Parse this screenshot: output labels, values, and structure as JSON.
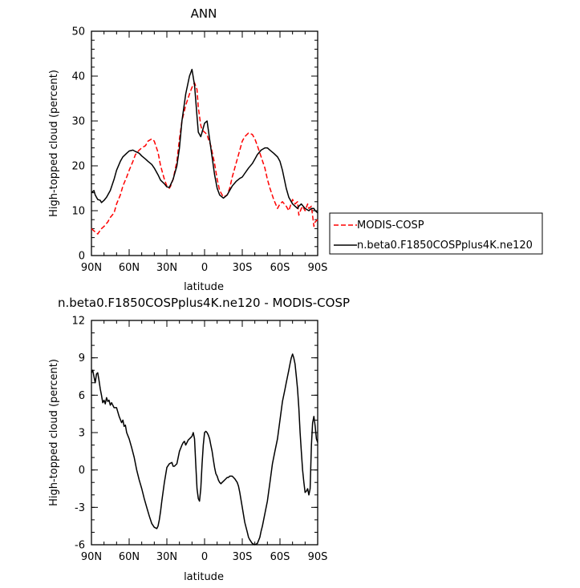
{
  "chart_data": [
    {
      "type": "line",
      "title": "ANN",
      "xlabel": "latitude",
      "ylabel": "High-topped cloud (percent)",
      "x_categories": [
        "90N",
        "60N",
        "30N",
        "0",
        "30S",
        "60S",
        "90S"
      ],
      "x_tick_values": [
        90,
        60,
        30,
        0,
        -30,
        -60,
        -90
      ],
      "xlim": [
        90,
        -90
      ],
      "ylim": [
        0,
        50
      ],
      "y_ticks": [
        0,
        10,
        20,
        30,
        40,
        50
      ],
      "grid": false,
      "legend_placement": "right",
      "series": [
        {
          "name": "MODIS-COSP",
          "color": "#ff0000",
          "dash": "dashed",
          "x": [
            90,
            88,
            85,
            82,
            80,
            77,
            75,
            72,
            70,
            67,
            65,
            62,
            60,
            57,
            55,
            52,
            50,
            47,
            45,
            42,
            40,
            37,
            35,
            32,
            30,
            28,
            27,
            25,
            22,
            20,
            18,
            15,
            12,
            10,
            8,
            6,
            5,
            3,
            2,
            0,
            -2,
            -3,
            -5,
            -8,
            -10,
            -12,
            -15,
            -18,
            -20,
            -22,
            -25,
            -28,
            -30,
            -32,
            -35,
            -38,
            -40,
            -42,
            -45,
            -48,
            -50,
            -52,
            -55,
            -58,
            -60,
            -62,
            -65,
            -67,
            -70,
            -72,
            -74,
            -75,
            -77,
            -78,
            -80,
            -82,
            -83,
            -85,
            -87,
            -88,
            -90
          ],
          "values": [
            6.0,
            5.5,
            4.8,
            6.0,
            6.5,
            7.5,
            8.5,
            9.5,
            11.5,
            13.5,
            15.5,
            17.5,
            19.0,
            21.0,
            22.5,
            23.5,
            24.0,
            24.5,
            25.5,
            26.0,
            25.5,
            23.0,
            20.0,
            17.0,
            15.5,
            15.0,
            15.5,
            17.0,
            21.0,
            26.0,
            30.0,
            33.5,
            36.0,
            37.5,
            38.5,
            37.0,
            33.0,
            29.0,
            28.0,
            27.5,
            27.0,
            26.0,
            24.5,
            20.5,
            17.0,
            14.5,
            13.0,
            13.5,
            15.0,
            17.5,
            20.5,
            23.5,
            25.5,
            26.5,
            27.3,
            27.0,
            26.0,
            24.5,
            22.0,
            19.5,
            17.0,
            15.0,
            12.5,
            10.5,
            11.5,
            12.0,
            11.0,
            10.0,
            12.5,
            11.5,
            12.0,
            9.0,
            10.5,
            11.0,
            10.0,
            11.5,
            10.5,
            11.0,
            6.5,
            7.5,
            8.0
          ]
        },
        {
          "name": "n.beta0.F1850COSPplus4K.ne120",
          "color": "#000000",
          "dash": "solid",
          "x": [
            90,
            88,
            87,
            85,
            83,
            82,
            80,
            78,
            77,
            75,
            72,
            70,
            67,
            65,
            62,
            60,
            57,
            55,
            52,
            50,
            47,
            45,
            42,
            40,
            37,
            35,
            32,
            30,
            28,
            27,
            25,
            22,
            20,
            18,
            15,
            12,
            10,
            8,
            6,
            5,
            3,
            2,
            0,
            -2,
            -3,
            -5,
            -8,
            -10,
            -12,
            -15,
            -18,
            -20,
            -22,
            -25,
            -28,
            -30,
            -32,
            -35,
            -38,
            -40,
            -42,
            -45,
            -48,
            -50,
            -52,
            -55,
            -58,
            -60,
            -62,
            -65,
            -67,
            -70,
            -72,
            -74,
            -75,
            -77,
            -80,
            -83,
            -85,
            -87,
            -88,
            -90
          ],
          "values": [
            14.0,
            14.5,
            13.5,
            12.5,
            12.3,
            11.8,
            12.3,
            13.0,
            13.5,
            14.5,
            17.0,
            19.0,
            21.0,
            22.0,
            22.8,
            23.3,
            23.5,
            23.2,
            22.8,
            22.2,
            21.5,
            21.0,
            20.3,
            19.5,
            18.0,
            16.8,
            16.0,
            15.3,
            15.2,
            15.8,
            17.0,
            20.0,
            24.0,
            30.0,
            36.0,
            40.0,
            41.5,
            38.0,
            31.0,
            27.5,
            26.5,
            27.5,
            29.5,
            30.0,
            28.0,
            24.0,
            18.0,
            15.0,
            13.5,
            12.8,
            13.5,
            14.5,
            15.5,
            16.5,
            17.2,
            17.5,
            18.3,
            19.5,
            20.5,
            21.5,
            22.5,
            23.5,
            24.0,
            24.0,
            23.5,
            22.8,
            22.0,
            21.0,
            19.0,
            15.0,
            13.0,
            11.5,
            11.0,
            10.5,
            11.0,
            11.5,
            10.5,
            10.0,
            10.5,
            10.5,
            10.0,
            9.5
          ]
        }
      ]
    },
    {
      "type": "line",
      "title": "n.beta0.F1850COSPplus4K.ne120 - MODIS-COSP",
      "xlabel": "latitude",
      "ylabel": "High-topped cloud (percent)",
      "x_categories": [
        "90N",
        "60N",
        "30N",
        "0",
        "30S",
        "60S",
        "90S"
      ],
      "x_tick_values": [
        90,
        60,
        30,
        0,
        -30,
        -60,
        -90
      ],
      "xlim": [
        90,
        -90
      ],
      "ylim": [
        -6,
        12
      ],
      "y_ticks": [
        -6,
        -3,
        0,
        3,
        6,
        9,
        12
      ],
      "grid": false,
      "series": [
        {
          "color": "#000000",
          "dash": "solid",
          "x": [
            90,
            89,
            88,
            87,
            86,
            85,
            84,
            83,
            82,
            81,
            80,
            79,
            78,
            77,
            76,
            75,
            74,
            72,
            70,
            68,
            66,
            65,
            64,
            63,
            62,
            60,
            58,
            56,
            54,
            52,
            50,
            48,
            46,
            44,
            42,
            40,
            38,
            37,
            36,
            35,
            34,
            32,
            30,
            28,
            26,
            25,
            24,
            22,
            20,
            18,
            17,
            16,
            15,
            14,
            13,
            12,
            11,
            10,
            9,
            8,
            7,
            6,
            5,
            4,
            3,
            2,
            1,
            0,
            -1,
            -2,
            -3,
            -4,
            -5,
            -6,
            -7,
            -8,
            -9,
            -10,
            -11,
            -12,
            -13,
            -14,
            -15,
            -16,
            -17,
            -18,
            -19,
            -20,
            -22,
            -24,
            -26,
            -27,
            -28,
            -30,
            -32,
            -34,
            -35,
            -36,
            -38,
            -40,
            -42,
            -44,
            -45,
            -46,
            -48,
            -50,
            -52,
            -54,
            -56,
            -58,
            -60,
            -62,
            -64,
            -65,
            -66,
            -67,
            -68,
            -69,
            -70,
            -71,
            -72,
            -73,
            -74,
            -75,
            -76,
            -77,
            -78,
            -79,
            -80,
            -81,
            -82,
            -83,
            -84,
            -85,
            -86,
            -87,
            -88,
            -89,
            -90
          ],
          "values": [
            7.8,
            8.0,
            7.5,
            7.0,
            7.7,
            7.8,
            7.2,
            6.5,
            6.0,
            5.4,
            5.6,
            5.3,
            5.8,
            5.5,
            5.6,
            5.2,
            5.4,
            5.0,
            5.0,
            4.3,
            3.8,
            4.0,
            3.5,
            3.6,
            3.0,
            2.5,
            1.8,
            1.0,
            0.0,
            -0.8,
            -1.5,
            -2.3,
            -3.0,
            -3.7,
            -4.3,
            -4.6,
            -4.7,
            -4.5,
            -4.0,
            -3.3,
            -2.5,
            -1.0,
            0.2,
            0.5,
            0.6,
            0.3,
            0.3,
            0.5,
            1.5,
            2.0,
            2.2,
            2.3,
            2.0,
            2.2,
            2.4,
            2.5,
            2.6,
            2.7,
            3.0,
            2.5,
            0.5,
            -1.5,
            -2.3,
            -2.5,
            -1.5,
            0.5,
            2.0,
            3.0,
            3.1,
            3.0,
            2.8,
            2.5,
            2.0,
            1.5,
            0.8,
            0.2,
            -0.3,
            -0.5,
            -0.8,
            -1.0,
            -1.1,
            -1.0,
            -0.9,
            -0.8,
            -0.7,
            -0.6,
            -0.6,
            -0.5,
            -0.5,
            -0.7,
            -1.0,
            -1.3,
            -1.8,
            -3.0,
            -4.2,
            -5.0,
            -5.4,
            -5.6,
            -5.9,
            -6.0,
            -5.9,
            -5.4,
            -4.9,
            -4.5,
            -3.5,
            -2.5,
            -1.0,
            0.5,
            1.5,
            2.5,
            4.0,
            5.5,
            6.5,
            7.0,
            7.5,
            8.0,
            8.5,
            9.0,
            9.3,
            9.0,
            8.5,
            7.5,
            6.5,
            5.0,
            3.0,
            1.5,
            0.0,
            -1.0,
            -1.8,
            -1.7,
            -1.5,
            -2.0,
            -1.5,
            2.0,
            3.8,
            4.3,
            3.5,
            2.5,
            2.2
          ]
        }
      ]
    }
  ]
}
